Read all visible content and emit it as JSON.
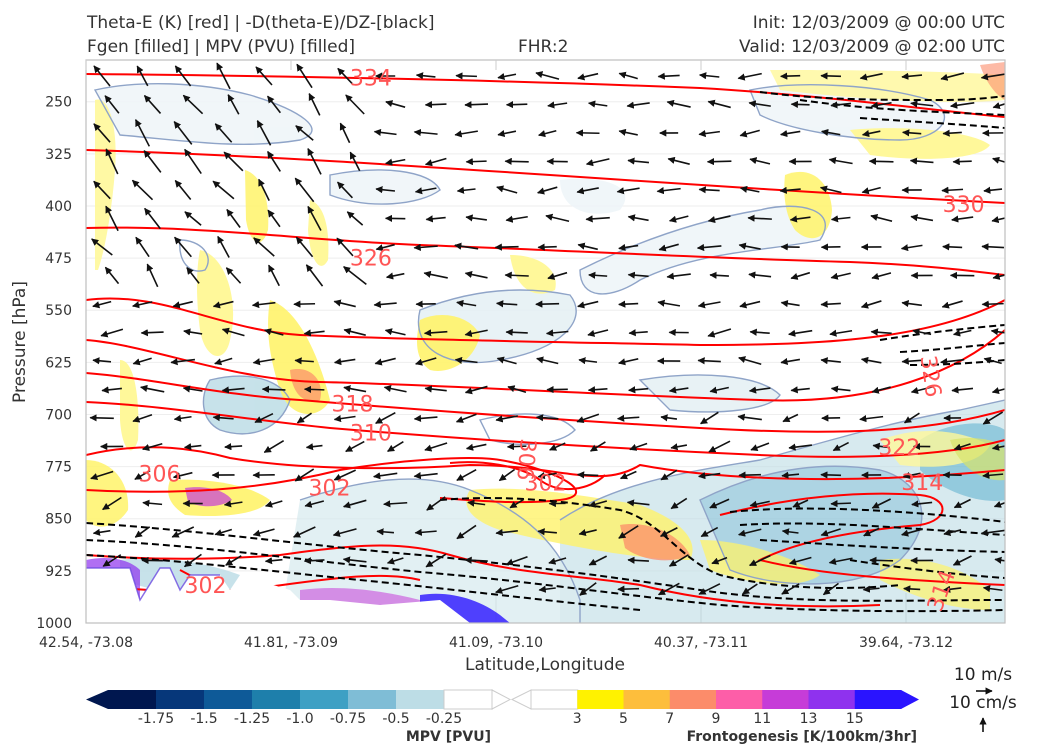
{
  "header": {
    "title_line1": "Theta-E (K) [red] | -D(theta-E)/DZ-[black]",
    "title_line2": "Fgen [filled] | MPV (PVU) [filled]",
    "fhr": "FHR:2",
    "init": "Init: 12/03/2009 @ 00:00 UTC",
    "valid": "Valid: 12/03/2009 @ 02:00 UTC"
  },
  "colors": {
    "theta_e": "#ff0000",
    "theta_e_label": "#ff5555",
    "stability": "#000000",
    "mpv_outline": "#8fa4c8",
    "mpv_fill": [
      "#00174f",
      "#06377a",
      "#0e5a98",
      "#1e7fab",
      "#3ea0c4",
      "#7fbdd6",
      "#bddde6",
      "#ffffff"
    ],
    "fgen_fill": [
      "#ffffff",
      "#fff200",
      "#fdbe3c",
      "#fc8c6a",
      "#fd5ea8",
      "#c63cd8",
      "#8f32ee",
      "#2a14ff"
    ]
  },
  "chart_data": {
    "type": "contour",
    "xlabel": "Latitude,Longitude",
    "ylabel": "Pressure [hPa]",
    "x_ticks": [
      "42.54, -73.08",
      "41.81, -73.09",
      "41.09, -73.10",
      "40.37, -73.11",
      "39.64, -73.12"
    ],
    "y_ticks": [
      250,
      325,
      400,
      475,
      550,
      625,
      700,
      775,
      850,
      925,
      1000
    ],
    "ylim": [
      1000,
      190
    ],
    "theta_e_contours": [
      {
        "value": 334,
        "label": "334",
        "p_left": 206,
        "p_right": 255
      },
      {
        "value": 330,
        "label": "330",
        "p_left": 330,
        "p_right": 386
      },
      {
        "value": 326,
        "label": "326",
        "p_left": 460,
        "p_right": 488
      },
      {
        "value": 322,
        "label": "322",
        "p_left": 638,
        "p_right": 703
      },
      {
        "value": 318,
        "label": "318",
        "p_left": 669,
        "p_right": 736
      },
      {
        "value": 310,
        "label": "310",
        "p_left": 713,
        "p_right": 785
      },
      {
        "value": 306,
        "label": "306",
        "p_left": 771,
        "p_right": 812
      },
      {
        "value": 302,
        "label": "302",
        "p_left": 850,
        "p_right": 870
      },
      {
        "value": 314,
        "label": "314",
        "p_left": 880,
        "p_right": 960
      }
    ],
    "contour_labels": [
      {
        "text": "334",
        "x": 0.31,
        "p": 215
      },
      {
        "text": "330",
        "x": 0.955,
        "p": 397
      },
      {
        "text": "326",
        "x": 0.31,
        "p": 474
      },
      {
        "text": "326",
        "x": 0.92,
        "p": 645,
        "rotate": 82
      },
      {
        "text": "318",
        "x": 0.29,
        "p": 684
      },
      {
        "text": "310",
        "x": 0.31,
        "p": 726
      },
      {
        "text": "322",
        "x": 0.885,
        "p": 747
      },
      {
        "text": "306",
        "x": 0.08,
        "p": 785
      },
      {
        "text": "302",
        "x": 0.265,
        "p": 805
      },
      {
        "text": "302",
        "x": 0.5,
        "p": 798
      },
      {
        "text": "314",
        "x": 0.91,
        "p": 797
      },
      {
        "text": "314",
        "x": 0.93,
        "p": 953,
        "rotate": -70
      },
      {
        "text": "302",
        "x": 0.13,
        "p": 945
      },
      {
        "text": "306",
        "x": 0.48,
        "p": 765,
        "rotate": 95
      }
    ],
    "mpv_colorbar": {
      "label": "MPV [PVU]",
      "ticks": [
        "-1.75",
        "-1.5",
        "-1.25",
        "-1.0",
        "-0.75",
        "-0.5",
        "-0.25"
      ]
    },
    "fgen_colorbar": {
      "label": "Frontogenesis [K/100km/3hr]",
      "ticks": [
        "3",
        "5",
        "7",
        "9",
        "11",
        "13",
        "15"
      ]
    },
    "wind_key": {
      "u": "10 m/s",
      "w": "10 cm/s"
    }
  }
}
